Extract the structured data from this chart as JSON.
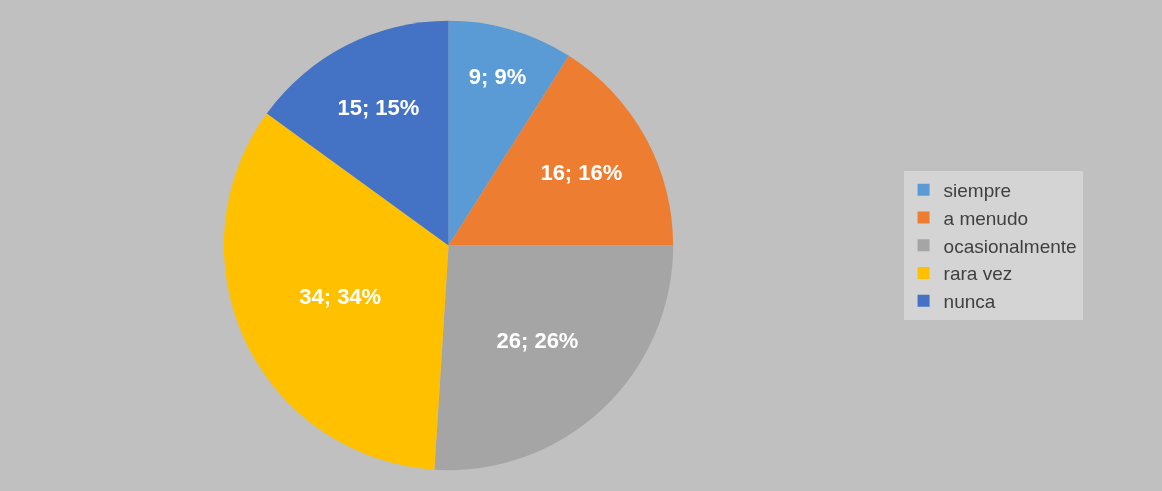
{
  "chart_data": {
    "type": "pie",
    "categories": [
      "siempre",
      "a menudo",
      "ocasionalmente",
      "rara vez",
      "nunca"
    ],
    "values": [
      9,
      16,
      26,
      34,
      15
    ],
    "colors": [
      "#5b9bd5",
      "#ed7d31",
      "#a5a5a5",
      "#ffc000",
      "#4472c4"
    ],
    "value_labels": [
      "9; 9%",
      "16; 16%",
      "26; 26%",
      "34; 34%",
      "15; 15%"
    ],
    "legend": "right"
  }
}
